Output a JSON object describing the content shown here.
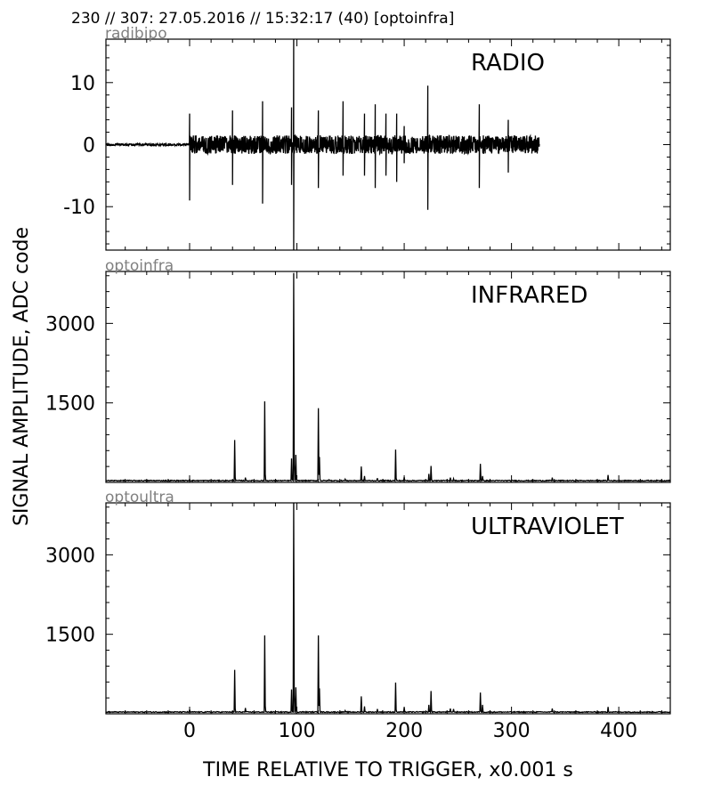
{
  "header": {
    "title": "230 // 307:   27.05.2016 // 15:32:17 (40)  [optoinfra]"
  },
  "ylabel": "SIGNAL AMPLITUDE,  ADC code",
  "xlabel": "TIME RELATIVE TO TRIGGER,   x0.001 s",
  "colors": {
    "trace": "#000000",
    "source_label": "#808080",
    "background": "#ffffff"
  },
  "chart_data": [
    {
      "type": "line",
      "source": "radibipo",
      "label": "RADIO",
      "xlim": [
        -78,
        448
      ],
      "ylim": [
        -17,
        17
      ],
      "xticks": [
        0,
        100,
        200,
        300,
        400
      ],
      "yticks": [
        -10,
        0,
        10
      ],
      "ytick_labels": [
        "-10",
        "0",
        "10"
      ],
      "signal_range": [
        -78,
        326
      ],
      "spikes": [
        [
          0,
          5,
          -9
        ],
        [
          40,
          5.5,
          -6.5
        ],
        [
          68,
          7,
          -9.5
        ],
        [
          95,
          6,
          -6.5
        ],
        [
          97,
          17,
          -17
        ],
        [
          120,
          5.5,
          -7
        ],
        [
          143,
          7,
          -5
        ],
        [
          163,
          5,
          -5
        ],
        [
          173,
          6.5,
          -7
        ],
        [
          183,
          5,
          -5
        ],
        [
          193,
          5,
          -6
        ],
        [
          200,
          3,
          -3
        ],
        [
          222,
          9.5,
          -10.5
        ],
        [
          270,
          6.5,
          -7
        ],
        [
          297,
          4,
          -4.5
        ]
      ],
      "grid": false
    },
    {
      "type": "line",
      "source": "optoinfra",
      "label": "INFRARED",
      "xlim": [
        -78,
        448
      ],
      "ylim": [
        0,
        3980
      ],
      "xticks": [
        0,
        100,
        200,
        300,
        400
      ],
      "yticks": [
        1500,
        3000
      ],
      "ytick_labels": [
        "1500",
        "3000"
      ],
      "baseline": 30,
      "peaks": [
        [
          0,
          60
        ],
        [
          42,
          800
        ],
        [
          52,
          90
        ],
        [
          70,
          1530
        ],
        [
          95,
          450
        ],
        [
          97,
          3950
        ],
        [
          99,
          520
        ],
        [
          120,
          1400
        ],
        [
          121,
          480
        ],
        [
          130,
          50
        ],
        [
          145,
          60
        ],
        [
          160,
          300
        ],
        [
          163,
          120
        ],
        [
          175,
          80
        ],
        [
          192,
          620
        ],
        [
          200,
          100
        ],
        [
          223,
          160
        ],
        [
          225,
          310
        ],
        [
          243,
          90
        ],
        [
          246,
          70
        ],
        [
          271,
          350
        ],
        [
          273,
          120
        ],
        [
          338,
          90
        ],
        [
          390,
          140
        ]
      ],
      "grid": false
    },
    {
      "type": "line",
      "source": "optoultra",
      "label": "ULTRAVIOLET",
      "xlim": [
        -78,
        448
      ],
      "ylim": [
        0,
        3980
      ],
      "xticks": [
        0,
        100,
        200,
        300,
        400
      ],
      "yticks": [
        1500,
        3000
      ],
      "ytick_labels": [
        "1500",
        "3000"
      ],
      "baseline": 30,
      "peaks": [
        [
          0,
          80
        ],
        [
          42,
          830
        ],
        [
          52,
          110
        ],
        [
          70,
          1480
        ],
        [
          95,
          460
        ],
        [
          97,
          4000
        ],
        [
          99,
          500
        ],
        [
          120,
          1480
        ],
        [
          121,
          480
        ],
        [
          145,
          60
        ],
        [
          160,
          330
        ],
        [
          163,
          140
        ],
        [
          175,
          90
        ],
        [
          192,
          590
        ],
        [
          200,
          120
        ],
        [
          223,
          170
        ],
        [
          225,
          430
        ],
        [
          243,
          100
        ],
        [
          246,
          90
        ],
        [
          271,
          400
        ],
        [
          273,
          170
        ],
        [
          338,
          100
        ],
        [
          390,
          130
        ]
      ],
      "grid": false
    }
  ]
}
